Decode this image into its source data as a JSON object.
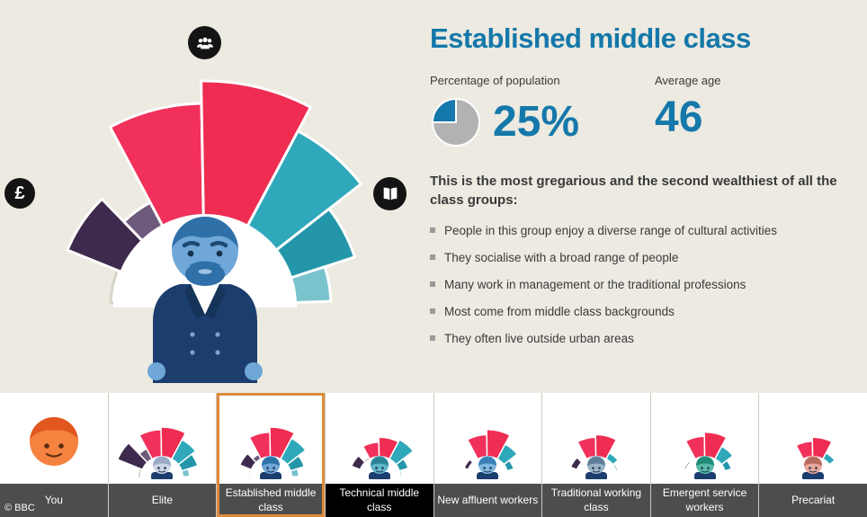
{
  "header": {
    "title": "Established middle class"
  },
  "stats": {
    "population_label": "Percentage of population",
    "population_value": "25%",
    "population_pct": 25,
    "age_label": "Average age",
    "age_value": "46"
  },
  "content": {
    "intro": "This is the most gregarious and the second wealthiest of all the class groups:",
    "bullets": [
      "People in this group enjoy a diverse range of cultural activities",
      "They socialise with a broad range of people",
      "Many work in management or the traditional professions",
      "Most come from middle class backgrounds",
      "They often live outside urban areas"
    ]
  },
  "icons": {
    "social": "people-icon",
    "economic": "pound-icon",
    "cultural": "book-icon",
    "pound_glyph": "£"
  },
  "colors": {
    "accent_blue": "#1578aa",
    "background": "#eceae1",
    "pie_gray": "#b2b2b2",
    "tab_label_bg": "#4d4d4d",
    "selected_border": "#dd8a3c",
    "pink": "#f1315b",
    "teal": "#2fa8bb",
    "plum": "#3e2a4c",
    "avatar_skin": "#6fa8d8",
    "avatar_hair": "#2f70a8",
    "avatar_suit": "#1c3e6e",
    "avatar_suit_dark": "#16345a",
    "avatar_shirt": "#ffffff",
    "avatar_button": "#7da2cc"
  },
  "chart_data": {
    "type": "radial_fan",
    "description": "Semicircular class-profile fan; wedge length = relative score for economic, social and cultural capital",
    "groups": [
      "economic",
      "social",
      "cultural"
    ],
    "segments": [
      {
        "group": "economic",
        "from_deg": 2,
        "to_deg": 22,
        "radius_frac": 0.42,
        "color": "#ffffff"
      },
      {
        "group": "economic",
        "from_deg": 22,
        "to_deg": 46,
        "radius_frac": 0.66,
        "color": "#3e2a4c"
      },
      {
        "group": "economic",
        "from_deg": 46,
        "to_deg": 62,
        "radius_frac": 0.52,
        "color": "#6e5a7c"
      },
      {
        "group": "social",
        "from_deg": 62,
        "to_deg": 89,
        "radius_frac": 0.9,
        "color": "#f1315b"
      },
      {
        "group": "social",
        "from_deg": 89,
        "to_deg": 118,
        "radius_frac": 1.0,
        "color": "#ef2c52"
      },
      {
        "group": "cultural",
        "from_deg": 118,
        "to_deg": 142,
        "radius_frac": 0.88,
        "color": "#2fa8bb"
      },
      {
        "group": "cultural",
        "from_deg": 142,
        "to_deg": 162,
        "radius_frac": 0.7,
        "color": "#2496a9"
      },
      {
        "group": "cultural",
        "from_deg": 162,
        "to_deg": 178,
        "radius_frac": 0.56,
        "color": "#79c3cd"
      }
    ]
  },
  "tabs": [
    {
      "label": "You",
      "type": "you",
      "selected": false,
      "avatar": {
        "head": "#f5823f",
        "hair": "#e2571f"
      }
    },
    {
      "label": "Elite",
      "selected": false,
      "avatar": {
        "head": "#cdd6e6",
        "hair": "#9aa9c4"
      },
      "fan_fractions": [
        0.45,
        0.95,
        0.65,
        0.95,
        1.0,
        0.85,
        0.75,
        0.55
      ]
    },
    {
      "label": "Established middle class",
      "selected": true,
      "avatar": {
        "head": "#6fa8d8",
        "hair": "#2f70a8"
      },
      "fan_fractions": [
        0.42,
        0.66,
        0.52,
        0.9,
        1.0,
        0.88,
        0.7,
        0.56
      ]
    },
    {
      "label": "Technical middle class",
      "selected": false,
      "label_style": "dark",
      "avatar": {
        "head": "#5fb7c9",
        "hair": "#2a8495"
      },
      "fan_fractions": [
        0.35,
        0.6,
        0.45,
        0.7,
        0.8,
        0.85,
        0.6,
        0.45
      ]
    },
    {
      "label": "New affluent workers",
      "selected": false,
      "avatar": {
        "head": "#7fb9e0",
        "hair": "#3a7fb5"
      },
      "fan_fractions": [
        0.3,
        0.5,
        0.4,
        0.85,
        0.95,
        0.75,
        0.55,
        0.4
      ]
    },
    {
      "label": "Traditional working class",
      "selected": false,
      "avatar": {
        "head": "#9ab4c8",
        "hair": "#5f7f99"
      },
      "fan_fractions": [
        0.35,
        0.55,
        0.4,
        0.8,
        0.85,
        0.55,
        0.45,
        0.35
      ]
    },
    {
      "label": "Emergent service workers",
      "selected": false,
      "avatar": {
        "head": "#57bba8",
        "hair": "#1f8b77"
      },
      "fan_fractions": [
        0.28,
        0.45,
        0.35,
        0.82,
        0.9,
        0.7,
        0.55,
        0.42
      ]
    },
    {
      "label": "Precariat",
      "selected": false,
      "avatar": {
        "head": "#e8a79b",
        "hair": "#b96a5e"
      },
      "fan_fractions": [
        0.25,
        0.42,
        0.32,
        0.72,
        0.8,
        0.55,
        0.42,
        0.32
      ]
    }
  ],
  "footer": {
    "copyright": "© BBC"
  }
}
